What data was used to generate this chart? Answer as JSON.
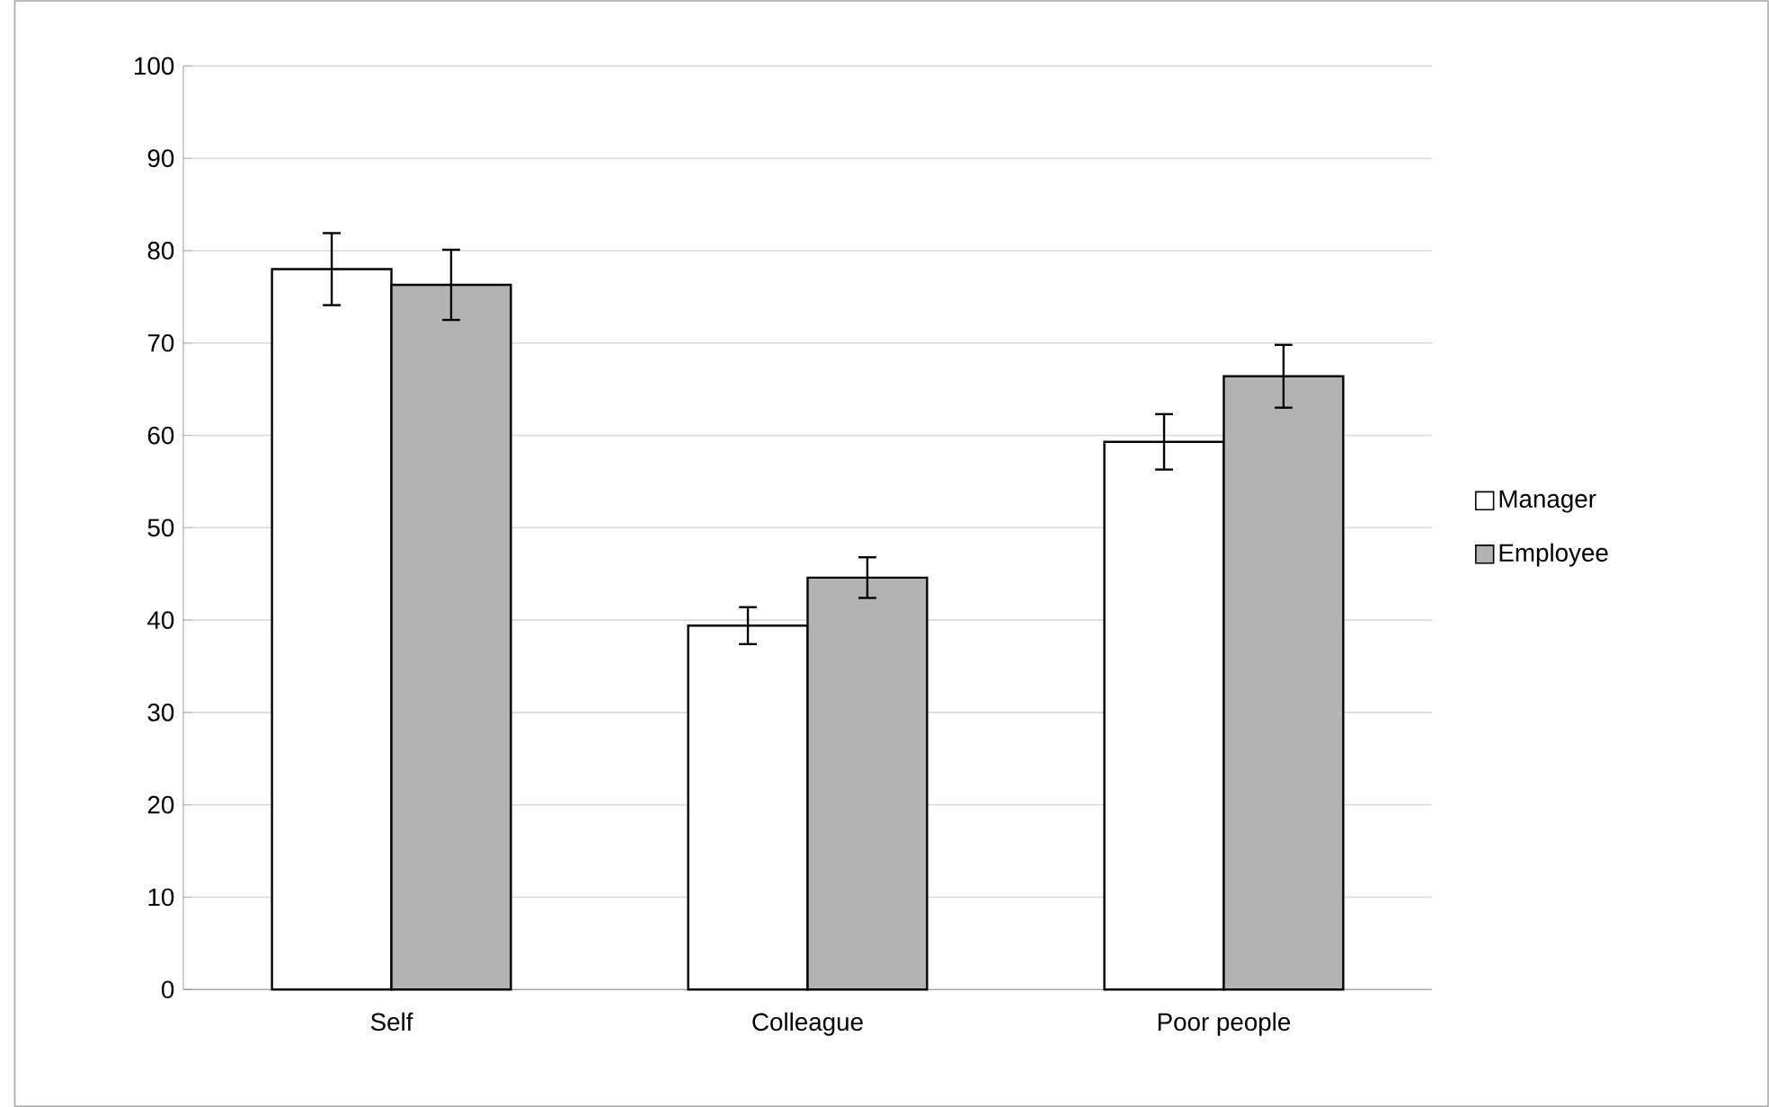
{
  "chart_data": {
    "type": "bar",
    "categories": [
      "Self",
      "Colleague",
      "Poor people"
    ],
    "series": [
      {
        "name": "Manager",
        "color": "#ffffff",
        "values": [
          78,
          39.4,
          59.3
        ],
        "errors": [
          3.9,
          2.0,
          3.0
        ]
      },
      {
        "name": "Employee",
        "color": "#b3b3b3",
        "values": [
          76.3,
          44.6,
          66.4
        ],
        "errors": [
          3.8,
          2.2,
          3.4
        ]
      }
    ],
    "ylim": [
      0,
      100
    ],
    "yticks": [
      0,
      10,
      20,
      30,
      40,
      50,
      60,
      70,
      80,
      90,
      100
    ],
    "grid": "y",
    "legend": "right"
  }
}
